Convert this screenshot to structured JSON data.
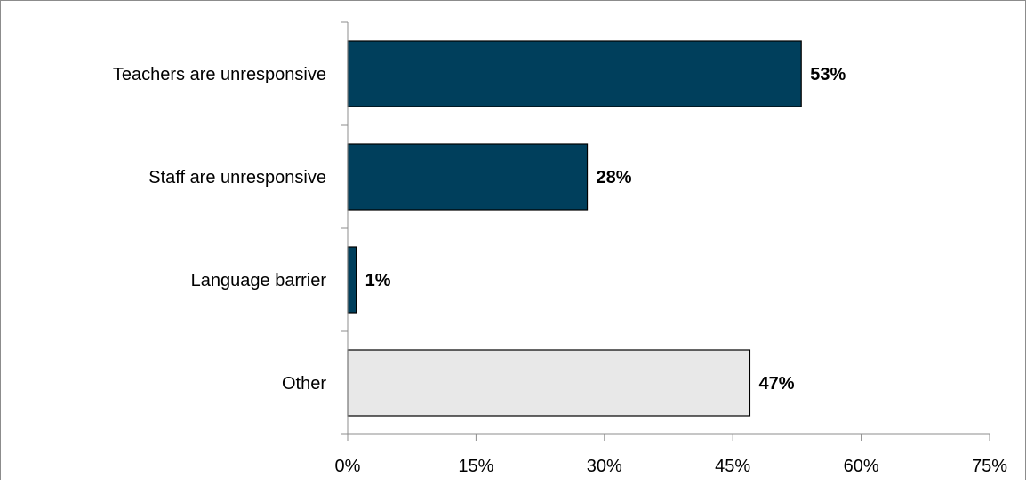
{
  "chart_data": {
    "type": "bar",
    "orientation": "horizontal",
    "categories": [
      "Teachers are unresponsive",
      "Staff are unresponsive",
      "Language barrier",
      "Other"
    ],
    "values": [
      53,
      28,
      1,
      47
    ],
    "value_labels": [
      "53%",
      "28%",
      "1%",
      "47%"
    ],
    "bar_colors": [
      "#003f5c",
      "#003f5c",
      "#003f5c",
      "#e8e8e8"
    ],
    "xlim": [
      0,
      75
    ],
    "xticks": [
      0,
      15,
      30,
      45,
      60,
      75
    ],
    "xtick_labels": [
      "0%",
      "15%",
      "30%",
      "45%",
      "60%",
      "75%"
    ],
    "grid": false,
    "legend": "none"
  }
}
